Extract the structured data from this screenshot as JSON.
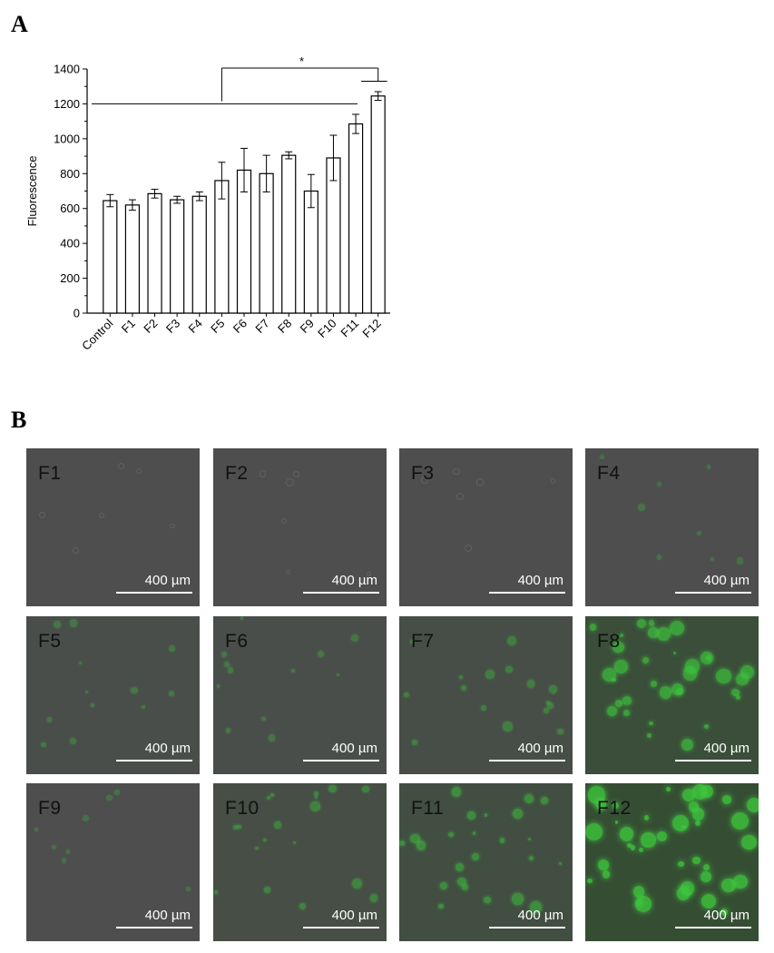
{
  "panel_a_label": "A",
  "panel_b_label": "B",
  "chart_data": {
    "type": "bar",
    "categories": [
      "Control",
      "F1",
      "F2",
      "F3",
      "F4",
      "F5",
      "F6",
      "F7",
      "F8",
      "F9",
      "F10",
      "F11",
      "F12"
    ],
    "values": [
      645,
      620,
      685,
      650,
      670,
      760,
      820,
      800,
      905,
      700,
      890,
      1085,
      1245
    ],
    "errors": [
      35,
      30,
      25,
      20,
      25,
      105,
      125,
      105,
      20,
      95,
      130,
      55,
      25
    ],
    "ylabel": "Fluorescence",
    "xlabel": "",
    "title": "",
    "ylim": [
      0,
      1400
    ],
    "yticks": [
      0,
      200,
      400,
      600,
      800,
      1000,
      1200,
      1400
    ],
    "bar_fill": "#ffffff",
    "bar_stroke": "#000000",
    "significance_marker": "*",
    "grid": false
  },
  "micrographs": [
    {
      "label": "F1",
      "scale": "400 µm",
      "green": 0.0
    },
    {
      "label": "F2",
      "scale": "400 µm",
      "green": 0.0
    },
    {
      "label": "F3",
      "scale": "400 µm",
      "green": 0.0
    },
    {
      "label": "F4",
      "scale": "400 µm",
      "green": 0.05
    },
    {
      "label": "F5",
      "scale": "400 µm",
      "green": 0.15
    },
    {
      "label": "F6",
      "scale": "400 µm",
      "green": 0.15
    },
    {
      "label": "F7",
      "scale": "400 µm",
      "green": 0.25
    },
    {
      "label": "F8",
      "scale": "400 µm",
      "green": 0.7
    },
    {
      "label": "F9",
      "scale": "400 µm",
      "green": 0.05
    },
    {
      "label": "F10",
      "scale": "400 µm",
      "green": 0.3
    },
    {
      "label": "F11",
      "scale": "400 µm",
      "green": 0.45
    },
    {
      "label": "F12",
      "scale": "400 µm",
      "green": 0.9
    }
  ]
}
